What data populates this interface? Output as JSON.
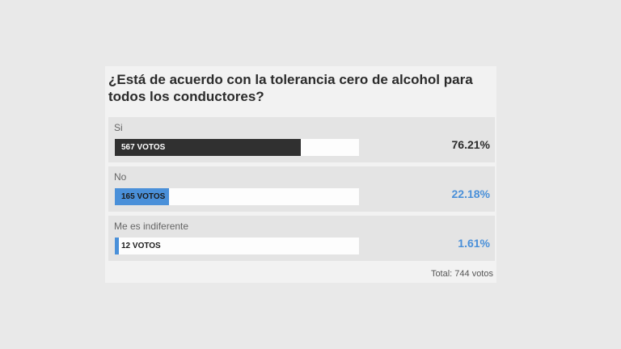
{
  "poll": {
    "question": "¿Está de acuerdo con la tolerancia cero de alcohol para todos los conductores?",
    "options": [
      {
        "label": "Si",
        "votes": "567 VOTOS",
        "percent": "76.21%",
        "fraction": 0.7621,
        "color": "#303030",
        "votes_color": "#ffffff",
        "pct_color": "#2b2b2b"
      },
      {
        "label": "No",
        "votes": "165 VOTOS",
        "percent": "22.18%",
        "fraction": 0.2218,
        "color": "#4a90d9",
        "votes_color": "#1a1a1a",
        "pct_color": "#4a90d9"
      },
      {
        "label": "Me es indiferente",
        "votes": "12 VOTOS",
        "percent": "1.61%",
        "fraction": 0.0161,
        "color": "#4a90d9",
        "votes_color": "#1a1a1a",
        "pct_color": "#4a90d9"
      }
    ],
    "total": "Total: 744 votos"
  }
}
